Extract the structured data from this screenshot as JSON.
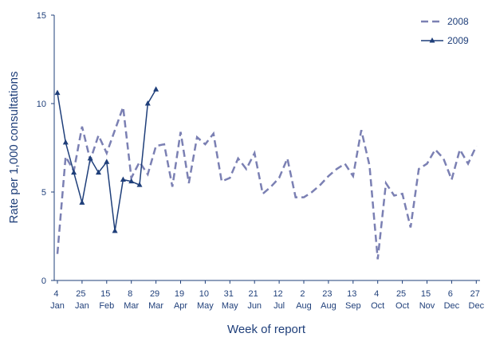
{
  "chart_data": {
    "type": "line",
    "x_label": "Week of report",
    "y_label": "Rate per 1,000 consultations",
    "categories": [
      "4 Jan",
      null,
      null,
      "25 Jan",
      null,
      null,
      "15 Feb",
      null,
      null,
      "8 Mar",
      null,
      null,
      "29 Mar",
      null,
      null,
      "19 Apr",
      null,
      null,
      "10 May",
      null,
      null,
      "31 May",
      null,
      null,
      "21 Jun",
      null,
      null,
      "12 Jul",
      null,
      null,
      "2 Aug",
      null,
      null,
      "23 Aug",
      null,
      null,
      "13 Sep",
      null,
      null,
      "4 Oct",
      null,
      null,
      "25 Oct",
      null,
      null,
      "15 Nov",
      null,
      null,
      "6 Dec",
      null,
      null,
      "27 Dec"
    ],
    "series": [
      {
        "name": "2008",
        "color": "#7b80b3",
        "dashed": true,
        "values": [
          1.5,
          7.0,
          6.2,
          8.7,
          6.8,
          8.2,
          7.2,
          8.5,
          9.8,
          5.8,
          6.7,
          6.0,
          7.6,
          7.7,
          5.3,
          8.4,
          5.5,
          8.1,
          7.7,
          8.3,
          5.6,
          5.8,
          6.9,
          6.3,
          7.2,
          4.9,
          5.3,
          5.8,
          6.9,
          4.7,
          4.7,
          5.0,
          5.4,
          5.9,
          6.3,
          6.6,
          5.9,
          8.5,
          6.5,
          1.2,
          5.5,
          4.8,
          4.9,
          3.0,
          6.3,
          6.6,
          7.4,
          6.9,
          5.7,
          7.4,
          6.6,
          7.6
        ]
      },
      {
        "name": "2009",
        "color": "#1f3f7a",
        "dashed": false,
        "values": [
          10.6,
          7.8,
          6.1,
          4.4,
          6.9,
          6.1,
          6.7,
          2.8,
          5.7,
          5.6,
          5.4,
          10.0,
          10.8,
          null,
          null,
          null,
          null,
          null,
          null,
          null,
          null,
          null,
          null,
          null,
          null,
          null,
          null,
          null,
          null,
          null,
          null,
          null,
          null,
          null,
          null,
          null,
          null,
          null,
          null,
          null,
          null,
          null,
          null,
          null,
          null,
          null,
          null,
          null,
          null,
          null,
          null,
          null
        ]
      }
    ],
    "ylim": [
      0,
      15
    ],
    "yticks": [
      0,
      5,
      10,
      15
    ],
    "grid": false,
    "legend": "top-right"
  }
}
